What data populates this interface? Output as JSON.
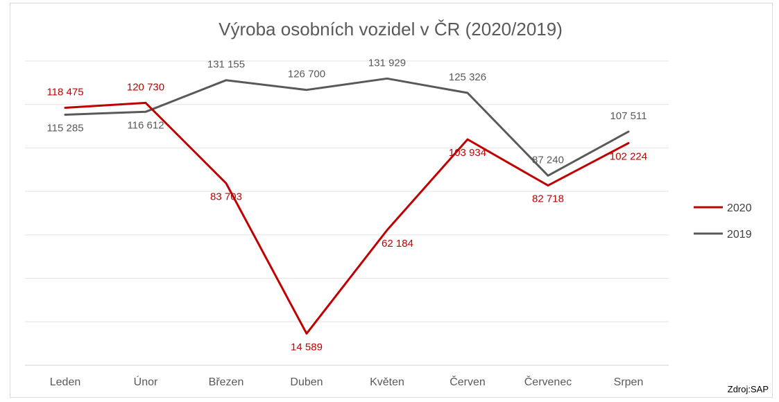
{
  "chart_data": {
    "type": "line",
    "title": "Výroba osobních vozidel v ČR (2020/2019)",
    "categories": [
      "Leden",
      "Únor",
      "Březen",
      "Duben",
      "Květen",
      "Červen",
      "Červenec",
      "Srpen"
    ],
    "series": [
      {
        "name": "2020",
        "color": "#c00000",
        "values": [
          118475,
          120730,
          83703,
          14589,
          62184,
          103934,
          82718,
          102224
        ],
        "labels": [
          "118 475",
          "120 730",
          "83 703",
          "14 589",
          "62 184",
          "103 934",
          "82 718",
          "102 224"
        ]
      },
      {
        "name": "2019",
        "color": "#595959",
        "values": [
          115285,
          116612,
          131155,
          126700,
          131929,
          125326,
          87240,
          107511
        ],
        "labels": [
          "115 285",
          "116 612",
          "131 155",
          "126 700",
          "131 929",
          "125 326",
          "87 240",
          "107 511"
        ]
      }
    ],
    "ylim": [
      0,
      140000
    ],
    "grid": true,
    "legend_position": "right",
    "source": "Zdroj:SAP"
  }
}
